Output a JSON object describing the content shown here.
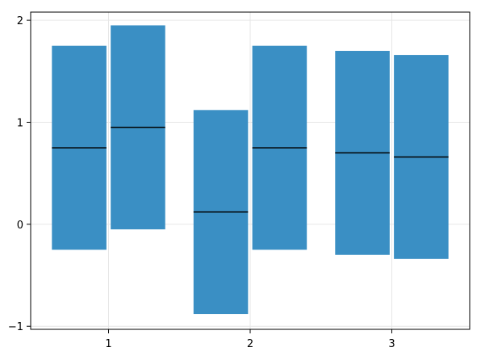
{
  "chart_data": {
    "type": "crossbar",
    "categories": [
      "1",
      "2",
      "3"
    ],
    "x_ticks": [
      "1",
      "2",
      "3"
    ],
    "y_ticks": [
      "−1",
      "0",
      "1",
      "2"
    ],
    "y_tick_values": [
      -1,
      0,
      1,
      2
    ],
    "ylim": [
      -1.03,
      2.08
    ],
    "xlim": [
      0.45,
      3.55
    ],
    "grid": true,
    "bars": [
      {
        "category": "1",
        "dodge": 1,
        "low": -0.25,
        "mid": 0.75,
        "high": 1.75
      },
      {
        "category": "1",
        "dodge": 2,
        "low": -0.05,
        "mid": 0.95,
        "high": 1.95
      },
      {
        "category": "2",
        "dodge": 1,
        "low": -0.88,
        "mid": 0.12,
        "high": 1.12
      },
      {
        "category": "2",
        "dodge": 2,
        "low": -0.25,
        "mid": 0.75,
        "high": 1.75
      },
      {
        "category": "3",
        "dodge": 1,
        "low": -0.3,
        "mid": 0.7,
        "high": 1.7
      },
      {
        "category": "3",
        "dodge": 2,
        "low": -0.34,
        "mid": 0.66,
        "high": 1.66
      }
    ],
    "colors": {
      "bar": "#3a8fc4",
      "midline": "#000000",
      "grid": "#e6e6e6",
      "frame": "#000000"
    }
  }
}
